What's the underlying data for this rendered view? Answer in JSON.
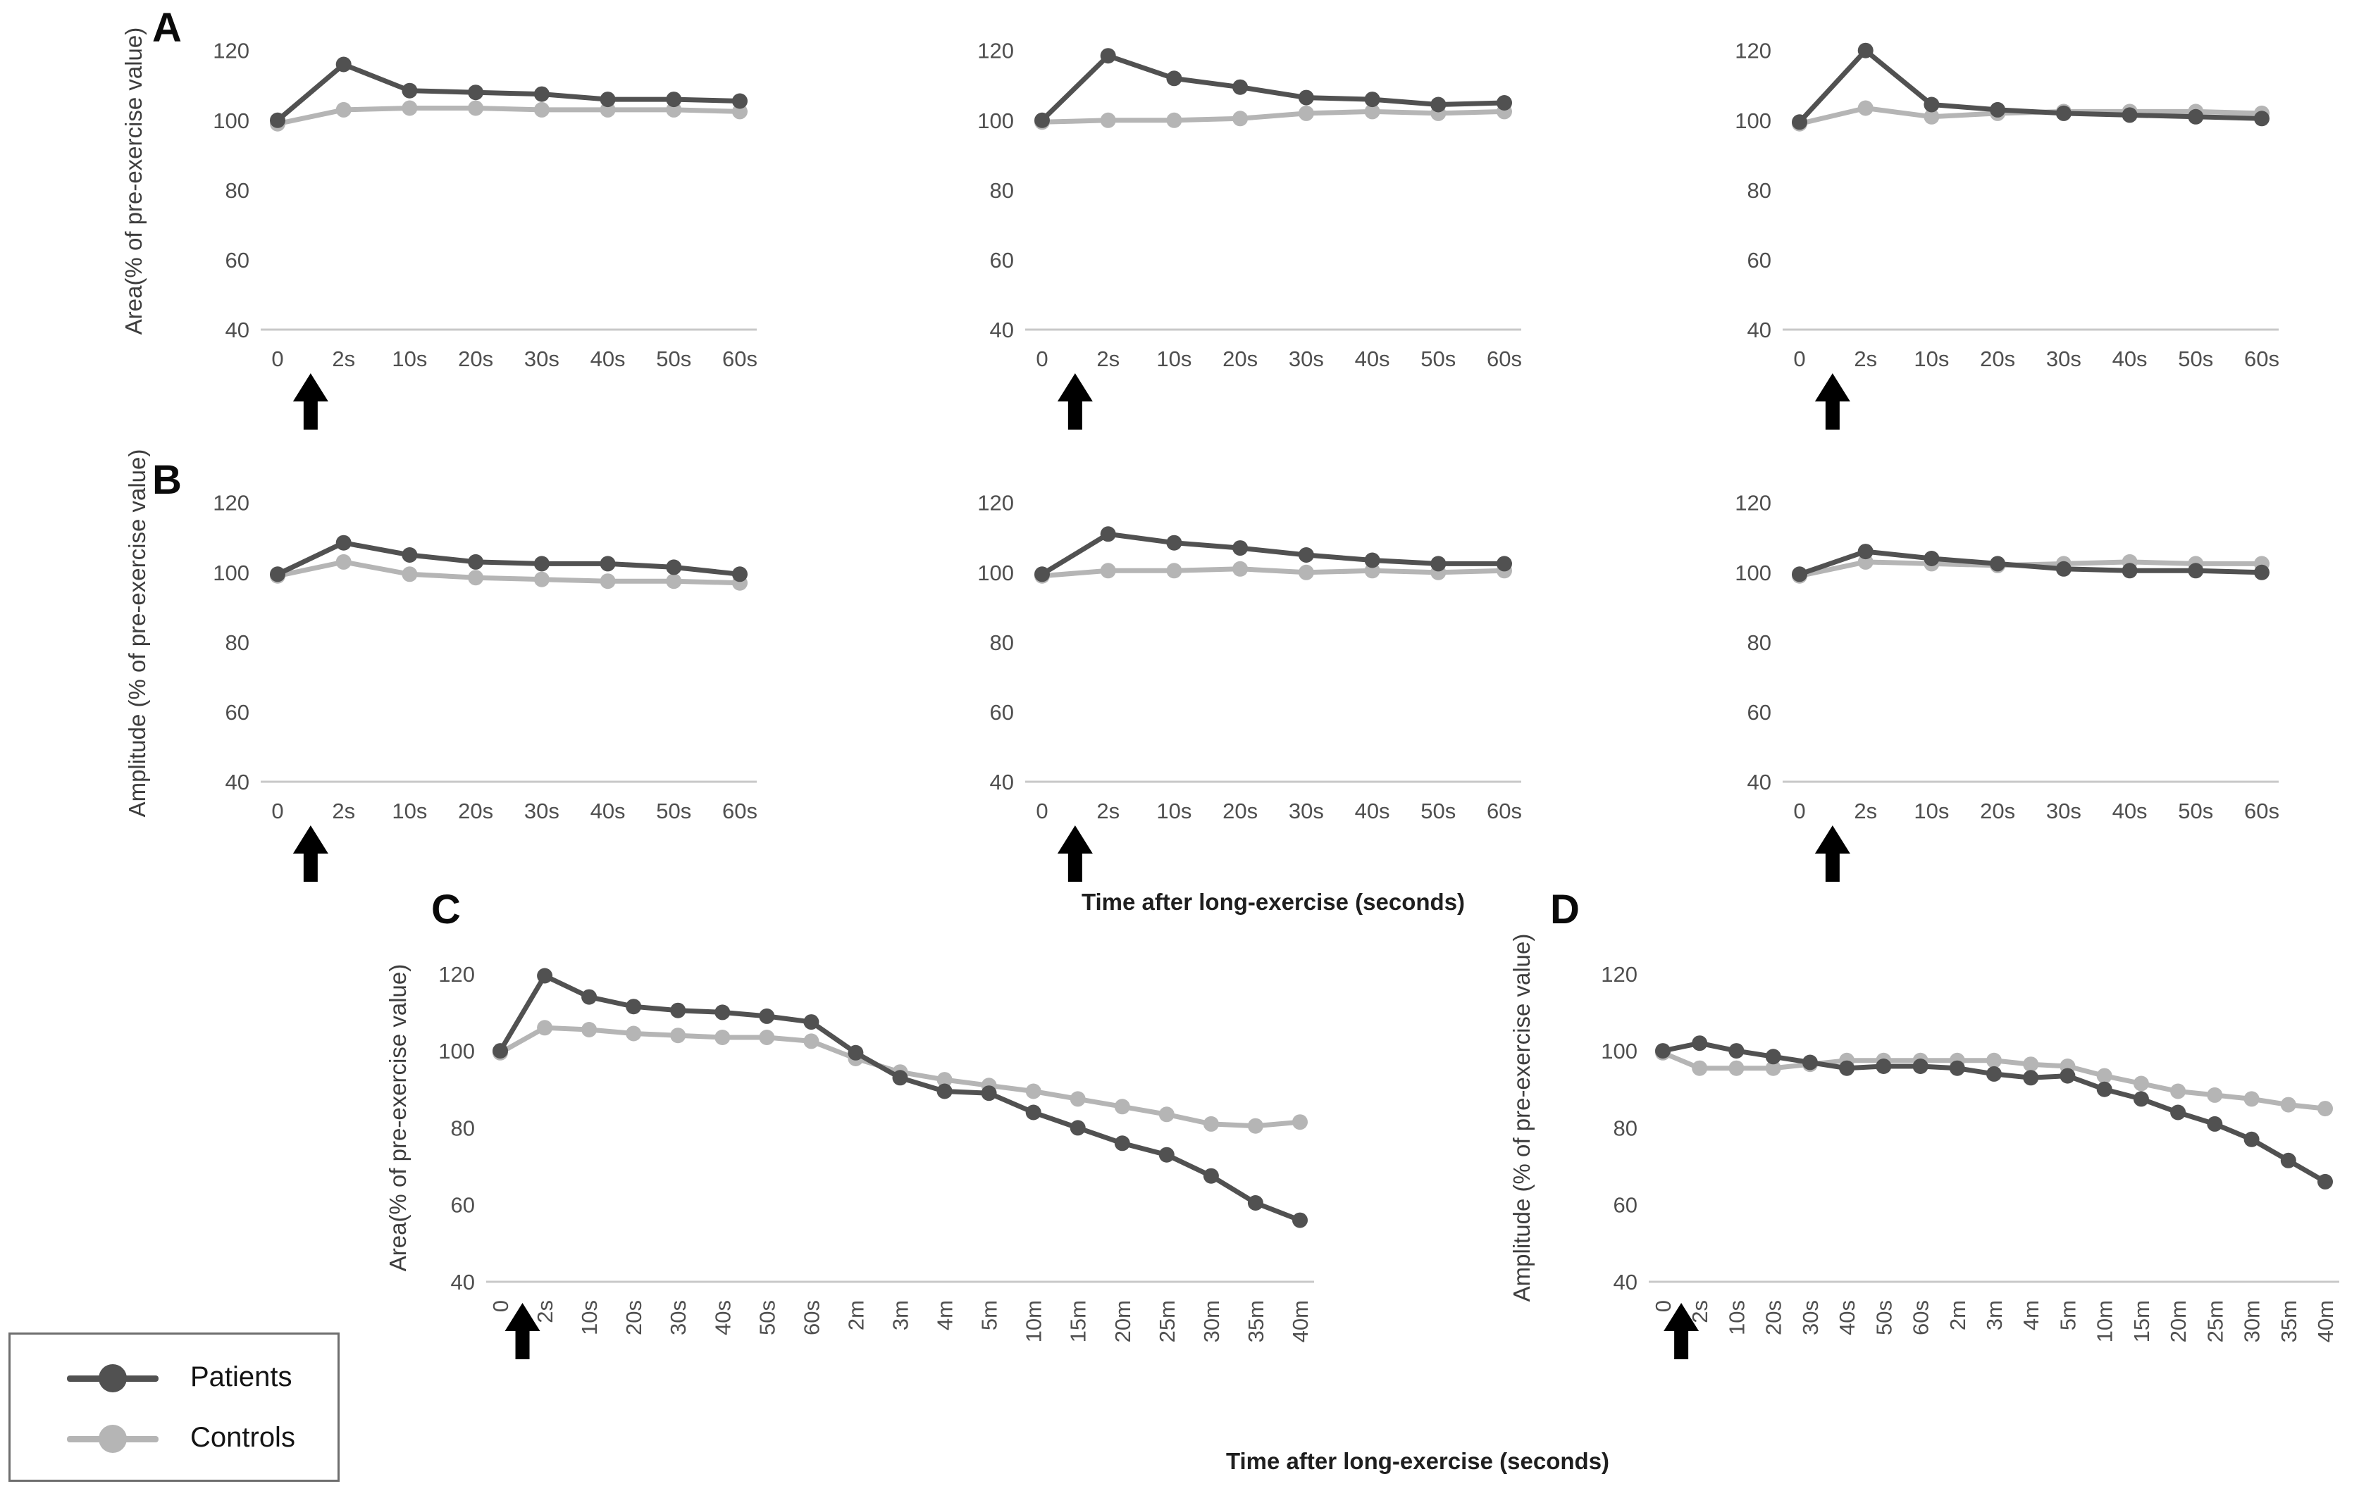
{
  "figure": {
    "description": "Multi-panel line figure: muscle response area and amplitude as % of pre-exercise value after long exercise, patients vs controls",
    "background": "#ffffff"
  },
  "colors": {
    "patients": "#515151",
    "controls": "#b5b5b5",
    "axis_line": "#c8c8c8",
    "tick_text": "#4f4f4f",
    "arrow": "#000000"
  },
  "panel_labels": {
    "a": "A",
    "b": "B",
    "c": "C",
    "d": "D"
  },
  "axis_titles": {
    "row_a_y": "Area(% of pre-exercise value)",
    "row_b_y": "Amplitude (% of pre-exercise value)",
    "panel_c_y": "Area(% of pre-exercise value)",
    "panel_d_y": "Amplitude (% of pre-exercise value)",
    "row_b_x": "Time after long-exercise (seconds)",
    "bottom_x": "Time after long-exercise (seconds)"
  },
  "legend": {
    "items": [
      {
        "label": "Patients",
        "color_key": "patients"
      },
      {
        "label": "Controls",
        "color_key": "controls"
      }
    ]
  },
  "chart_data": [
    {
      "id": "A1",
      "panel": "A",
      "type": "line",
      "title": "",
      "xlabel": "",
      "ylabel": "Area(% of pre-exercise value)",
      "categories": [
        "0",
        "2s",
        "10s",
        "20s",
        "30s",
        "40s",
        "50s",
        "60s"
      ],
      "yticks": [
        120,
        100,
        80,
        60,
        40
      ],
      "ylim": [
        40,
        126
      ],
      "grid": false,
      "annotation": "black up-arrow between 0 and 2s",
      "series": [
        {
          "name": "Patients",
          "color_key": "patients",
          "values": [
            100,
            116,
            108.5,
            108,
            107.5,
            106,
            106,
            105.5
          ]
        },
        {
          "name": "Controls",
          "color_key": "controls",
          "values": [
            99,
            103,
            103.5,
            103.5,
            103,
            103,
            103,
            102.5
          ]
        }
      ]
    },
    {
      "id": "A2",
      "panel": "A",
      "type": "line",
      "title": "",
      "xlabel": "",
      "ylabel": "",
      "categories": [
        "0",
        "2s",
        "10s",
        "20s",
        "30s",
        "40s",
        "50s",
        "60s"
      ],
      "yticks": [
        120,
        100,
        80,
        60,
        40
      ],
      "ylim": [
        40,
        126
      ],
      "grid": false,
      "annotation": "black up-arrow between 0 and 2s",
      "series": [
        {
          "name": "Patients",
          "color_key": "patients",
          "values": [
            100,
            118.5,
            112,
            109.5,
            106.5,
            106,
            104.5,
            105
          ]
        },
        {
          "name": "Controls",
          "color_key": "controls",
          "values": [
            99.5,
            100,
            100,
            100.5,
            102,
            102.5,
            102,
            102.5
          ]
        }
      ]
    },
    {
      "id": "A3",
      "panel": "A",
      "type": "line",
      "title": "",
      "xlabel": "",
      "ylabel": "",
      "categories": [
        "0",
        "2s",
        "10s",
        "20s",
        "30s",
        "40s",
        "50s",
        "60s"
      ],
      "yticks": [
        120,
        100,
        80,
        60,
        40
      ],
      "ylim": [
        40,
        126
      ],
      "grid": false,
      "annotation": "black up-arrow between 0 and 2s",
      "series": [
        {
          "name": "Patients",
          "color_key": "patients",
          "values": [
            99.5,
            120,
            104.5,
            103,
            102,
            101.5,
            101,
            100.5
          ]
        },
        {
          "name": "Controls",
          "color_key": "controls",
          "values": [
            99,
            103.5,
            101,
            102,
            102.5,
            102.5,
            102.5,
            102
          ]
        }
      ]
    },
    {
      "id": "B1",
      "panel": "B",
      "type": "line",
      "title": "",
      "xlabel": "",
      "ylabel": "Amplitude (% of pre-exercise value)",
      "categories": [
        "0",
        "2s",
        "10s",
        "20s",
        "30s",
        "40s",
        "50s",
        "60s"
      ],
      "yticks": [
        120,
        100,
        80,
        60,
        40
      ],
      "ylim": [
        40,
        126
      ],
      "grid": false,
      "annotation": "black up-arrow between 0 and 2s",
      "series": [
        {
          "name": "Patients",
          "color_key": "patients",
          "values": [
            99.5,
            108.5,
            105,
            103,
            102.5,
            102.5,
            101.5,
            99.5
          ]
        },
        {
          "name": "Controls",
          "color_key": "controls",
          "values": [
            99,
            103,
            99.5,
            98.5,
            98,
            97.5,
            97.5,
            97
          ]
        }
      ]
    },
    {
      "id": "B2",
      "panel": "B",
      "type": "line",
      "title": "",
      "xlabel": "Time after long-exercise (seconds)",
      "ylabel": "",
      "categories": [
        "0",
        "2s",
        "10s",
        "20s",
        "30s",
        "40s",
        "50s",
        "60s"
      ],
      "yticks": [
        120,
        100,
        80,
        60,
        40
      ],
      "ylim": [
        40,
        126
      ],
      "grid": false,
      "annotation": "black up-arrow between 0 and 2s",
      "series": [
        {
          "name": "Patients",
          "color_key": "patients",
          "values": [
            99.5,
            111,
            108.5,
            107,
            105,
            103.5,
            102.5,
            102.5
          ]
        },
        {
          "name": "Controls",
          "color_key": "controls",
          "values": [
            99,
            100.5,
            100.5,
            101,
            100,
            100.5,
            100,
            100.5
          ]
        }
      ]
    },
    {
      "id": "B3",
      "panel": "B",
      "type": "line",
      "title": "",
      "xlabel": "",
      "ylabel": "",
      "categories": [
        "0",
        "2s",
        "10s",
        "20s",
        "30s",
        "40s",
        "50s",
        "60s"
      ],
      "yticks": [
        120,
        100,
        80,
        60,
        40
      ],
      "ylim": [
        40,
        126
      ],
      "grid": false,
      "annotation": "black up-arrow between 0 and 2s",
      "series": [
        {
          "name": "Patients",
          "color_key": "patients",
          "values": [
            99.5,
            106,
            104,
            102.5,
            101,
            100.5,
            100.5,
            100
          ]
        },
        {
          "name": "Controls",
          "color_key": "controls",
          "values": [
            99,
            103,
            102.5,
            102,
            102.5,
            103,
            102.5,
            102.5
          ]
        }
      ]
    },
    {
      "id": "C",
      "panel": "C",
      "type": "line",
      "title": "",
      "xlabel": "Time after long-exercise (seconds)",
      "ylabel": "Area(% of pre-exercise value)",
      "categories": [
        "0",
        "2s",
        "10s",
        "20s",
        "30s",
        "40s",
        "50s",
        "60s",
        "2m",
        "3m",
        "4m",
        "5m",
        "10m",
        "15m",
        "20m",
        "25m",
        "30m",
        "35m",
        "40m"
      ],
      "yticks": [
        120,
        100,
        80,
        60,
        40
      ],
      "ylim": [
        40,
        126
      ],
      "grid": false,
      "annotation": "black up-arrow between 0 and 2s; x labels rotated 90",
      "series": [
        {
          "name": "Patients",
          "color_key": "patients",
          "values": [
            100,
            119.5,
            114,
            111.5,
            110.5,
            110,
            109,
            107.5,
            99.5,
            93,
            89.5,
            89,
            84,
            80,
            76,
            73,
            67.5,
            60.5,
            56
          ]
        },
        {
          "name": "Controls",
          "color_key": "controls",
          "values": [
            99.5,
            106,
            105.5,
            104.5,
            104,
            103.5,
            103.5,
            102.5,
            98,
            94.5,
            92.5,
            91,
            89.5,
            87.5,
            85.5,
            83.5,
            81,
            80.5,
            81.5
          ]
        }
      ]
    },
    {
      "id": "D",
      "panel": "D",
      "type": "line",
      "title": "",
      "xlabel": "Time after long-exercise (seconds)",
      "ylabel": "Amplitude (% of pre-exercise value)",
      "categories": [
        "0",
        "2s",
        "10s",
        "20s",
        "30s",
        "40s",
        "50s",
        "60s",
        "2m",
        "3m",
        "4m",
        "5m",
        "10m",
        "15m",
        "20m",
        "25m",
        "30m",
        "35m",
        "40m"
      ],
      "yticks": [
        120,
        100,
        80,
        60,
        40
      ],
      "ylim": [
        40,
        126
      ],
      "grid": false,
      "annotation": "black up-arrow between 0 and 2s; x labels rotated 90",
      "series": [
        {
          "name": "Patients",
          "color_key": "patients",
          "values": [
            100,
            102,
            100,
            98.5,
            97,
            95.5,
            96,
            96,
            95.5,
            94,
            93,
            93.5,
            90,
            87.5,
            84,
            81,
            77,
            71.5,
            66
          ]
        },
        {
          "name": "Controls",
          "color_key": "controls",
          "values": [
            99.5,
            95.5,
            95.5,
            95.5,
            96.5,
            97.5,
            97.5,
            97.5,
            97.5,
            97.5,
            96.5,
            96,
            93.5,
            91.5,
            89.5,
            88.5,
            87.5,
            86,
            85
          ]
        }
      ]
    }
  ]
}
